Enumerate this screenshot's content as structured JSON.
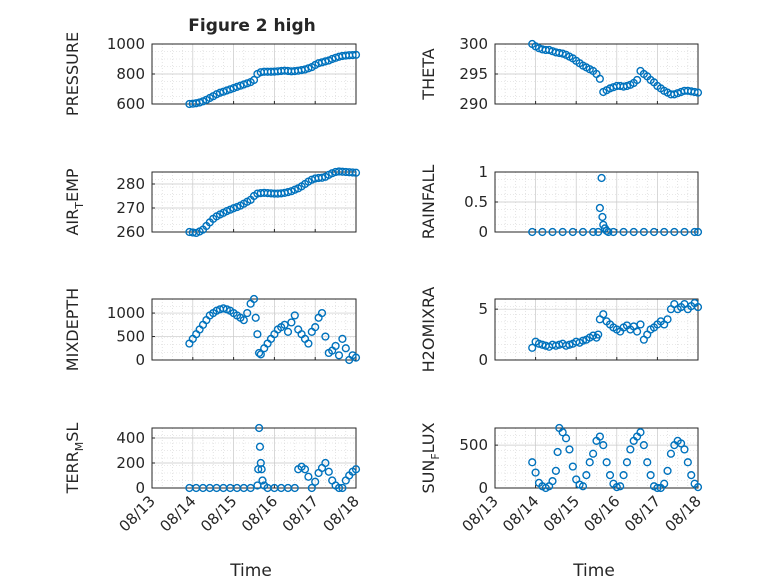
{
  "figure": {
    "title": "Figure 2 high",
    "marker_color": "#0072BD",
    "time_ticks": [
      "08/13",
      "08/14",
      "08/15",
      "08/16",
      "08/17",
      "08/18"
    ],
    "xlabel": "Time"
  },
  "chart_data": [
    {
      "type": "scatter",
      "ylabel": "PRESSURE",
      "ylim": [
        600,
        1000
      ],
      "yticks": [
        600,
        800,
        1000
      ],
      "grid": true,
      "x": [
        "08/13 22:00",
        "08/14 00:00",
        "08/14 02:00",
        "08/14 04:00",
        "08/14 06:00",
        "08/14 08:00",
        "08/14 10:00",
        "08/14 12:00",
        "08/14 14:00",
        "08/14 16:00",
        "08/14 18:00",
        "08/14 20:00",
        "08/14 22:00",
        "08/15 00:00",
        "08/15 02:00",
        "08/15 04:00",
        "08/15 06:00",
        "08/15 08:00",
        "08/15 10:00",
        "08/15 12:00",
        "08/15 14:00",
        "08/15 16:00",
        "08/15 18:00",
        "08/15 20:00",
        "08/15 22:00",
        "08/16 00:00",
        "08/16 02:00",
        "08/16 04:00",
        "08/16 06:00",
        "08/16 08:00",
        "08/16 10:00",
        "08/16 12:00",
        "08/16 14:00",
        "08/16 16:00",
        "08/16 18:00",
        "08/16 20:00",
        "08/16 22:00",
        "08/17 00:00",
        "08/17 02:00",
        "08/17 04:00",
        "08/17 06:00",
        "08/17 08:00",
        "08/17 10:00",
        "08/17 12:00",
        "08/17 14:00",
        "08/17 16:00",
        "08/17 18:00",
        "08/17 20:00",
        "08/17 22:00",
        "08/18 00:00"
      ],
      "y": [
        600,
        602,
        605,
        610,
        618,
        628,
        640,
        652,
        665,
        675,
        682,
        690,
        698,
        706,
        714,
        722,
        730,
        738,
        746,
        760,
        800,
        812,
        815,
        815,
        815,
        816,
        818,
        820,
        822,
        820,
        818,
        819,
        822,
        826,
        830,
        838,
        846,
        860,
        872,
        878,
        884,
        890,
        900,
        908,
        915,
        920,
        923,
        925,
        926,
        928
      ]
    },
    {
      "type": "scatter",
      "ylabel": "THETA",
      "ylim": [
        290,
        300
      ],
      "yticks": [
        290,
        295,
        300
      ],
      "grid": true,
      "x": [
        "08/13 22:00",
        "08/14 00:00",
        "08/14 02:00",
        "08/14 04:00",
        "08/14 06:00",
        "08/14 08:00",
        "08/14 10:00",
        "08/14 12:00",
        "08/14 14:00",
        "08/14 16:00",
        "08/14 18:00",
        "08/14 20:00",
        "08/14 22:00",
        "08/15 00:00",
        "08/15 02:00",
        "08/15 04:00",
        "08/15 06:00",
        "08/15 08:00",
        "08/15 10:00",
        "08/15 12:00",
        "08/15 14:00",
        "08/15 16:00",
        "08/15 18:00",
        "08/15 20:00",
        "08/15 22:00",
        "08/16 00:00",
        "08/16 02:00",
        "08/16 04:00",
        "08/16 06:00",
        "08/16 08:00",
        "08/16 10:00",
        "08/16 12:00",
        "08/16 14:00",
        "08/16 16:00",
        "08/16 18:00",
        "08/16 20:00",
        "08/16 22:00",
        "08/17 00:00",
        "08/17 02:00",
        "08/17 04:00",
        "08/17 06:00",
        "08/17 08:00",
        "08/17 10:00",
        "08/17 12:00",
        "08/17 14:00",
        "08/17 16:00",
        "08/17 18:00",
        "08/17 20:00",
        "08/17 22:00",
        "08/18 00:00"
      ],
      "y": [
        300,
        299.6,
        299.3,
        299.1,
        299,
        299,
        298.8,
        298.6,
        298.5,
        298.4,
        298.2,
        297.9,
        297.6,
        297.2,
        296.8,
        296.4,
        296.1,
        295.8,
        295.5,
        295,
        294.2,
        292,
        292.3,
        292.6,
        292.8,
        293,
        293,
        292.9,
        293,
        293.2,
        293.5,
        294,
        295.5,
        295,
        294.6,
        294,
        293.6,
        293,
        292.6,
        292.2,
        291.9,
        291.6,
        291.6,
        291.8,
        292,
        292.2,
        292.2,
        292.1,
        292,
        291.9
      ]
    },
    {
      "type": "scatter",
      "ylabel": "AIR_TEMP",
      "ylim": [
        260,
        285
      ],
      "yticks": [
        260,
        270,
        280
      ],
      "grid": true,
      "x": [
        "08/13 22:00",
        "08/14 00:00",
        "08/14 02:00",
        "08/14 04:00",
        "08/14 06:00",
        "08/14 08:00",
        "08/14 10:00",
        "08/14 12:00",
        "08/14 14:00",
        "08/14 16:00",
        "08/14 18:00",
        "08/14 20:00",
        "08/14 22:00",
        "08/15 00:00",
        "08/15 02:00",
        "08/15 04:00",
        "08/15 06:00",
        "08/15 08:00",
        "08/15 10:00",
        "08/15 12:00",
        "08/15 14:00",
        "08/15 16:00",
        "08/15 18:00",
        "08/15 20:00",
        "08/15 22:00",
        "08/16 00:00",
        "08/16 02:00",
        "08/16 04:00",
        "08/16 06:00",
        "08/16 08:00",
        "08/16 10:00",
        "08/16 12:00",
        "08/16 14:00",
        "08/16 16:00",
        "08/16 18:00",
        "08/16 20:00",
        "08/16 22:00",
        "08/17 00:00",
        "08/17 02:00",
        "08/17 04:00",
        "08/17 06:00",
        "08/17 08:00",
        "08/17 10:00",
        "08/17 12:00",
        "08/17 14:00",
        "08/17 16:00",
        "08/17 18:00",
        "08/17 20:00",
        "08/17 22:00",
        "08/18 00:00"
      ],
      "y": [
        260,
        259.8,
        259.6,
        260.2,
        261,
        262.5,
        264,
        265.5,
        266.5,
        267.3,
        268,
        268.7,
        269.3,
        269.9,
        270.4,
        271,
        271.8,
        272.6,
        273.4,
        275,
        276,
        276.2,
        276.3,
        276.2,
        276.1,
        276,
        276,
        276.1,
        276.3,
        276.6,
        277,
        277.6,
        278.2,
        279,
        280,
        281,
        281.8,
        282.3,
        282.5,
        282.6,
        283,
        283.8,
        284.5,
        285,
        285.2,
        285.1,
        285,
        284.9,
        284.8,
        284.7
      ]
    },
    {
      "type": "scatter",
      "ylabel": "RAINFALL",
      "ylim": [
        0,
        1
      ],
      "yticks": [
        0,
        0.5,
        1
      ],
      "grid": true,
      "x": [
        "08/13 22:00",
        "08/14 04:00",
        "08/14 10:00",
        "08/14 16:00",
        "08/14 22:00",
        "08/15 04:00",
        "08/15 10:00",
        "08/15 13:00",
        "08/15 14:00",
        "08/15 15:00",
        "08/15 15:30",
        "08/15 16:00",
        "08/15 17:00",
        "08/15 18:00",
        "08/15 19:00",
        "08/15 22:00",
        "08/16 04:00",
        "08/16 10:00",
        "08/16 16:00",
        "08/16 22:00",
        "08/17 04:00",
        "08/17 10:00",
        "08/17 16:00",
        "08/17 22:00",
        "08/18 00:00"
      ],
      "y": [
        0,
        0,
        0,
        0,
        0,
        0,
        0,
        0,
        0.4,
        0.9,
        0.25,
        0.12,
        0.06,
        0.02,
        0,
        0,
        0,
        0,
        0,
        0,
        0,
        0,
        0,
        0,
        0
      ]
    },
    {
      "type": "scatter",
      "ylabel": "MIXDEPTH",
      "ylim": [
        0,
        1300
      ],
      "yticks": [
        0,
        500,
        1000
      ],
      "grid": true,
      "x": [
        "08/13 22:00",
        "08/14 00:00",
        "08/14 02:00",
        "08/14 04:00",
        "08/14 06:00",
        "08/14 08:00",
        "08/14 10:00",
        "08/14 12:00",
        "08/14 14:00",
        "08/14 16:00",
        "08/14 18:00",
        "08/14 20:00",
        "08/14 22:00",
        "08/15 00:00",
        "08/15 02:00",
        "08/15 04:00",
        "08/15 06:00",
        "08/15 08:00",
        "08/15 10:00",
        "08/15 12:00",
        "08/15 13:00",
        "08/15 14:00",
        "08/15 15:00",
        "08/15 16:00",
        "08/15 18:00",
        "08/15 20:00",
        "08/15 22:00",
        "08/16 00:00",
        "08/16 02:00",
        "08/16 04:00",
        "08/16 06:00",
        "08/16 08:00",
        "08/16 10:00",
        "08/16 12:00",
        "08/16 14:00",
        "08/16 16:00",
        "08/16 18:00",
        "08/16 20:00",
        "08/16 22:00",
        "08/17 00:00",
        "08/17 02:00",
        "08/17 04:00",
        "08/17 06:00",
        "08/17 08:00",
        "08/17 10:00",
        "08/17 12:00",
        "08/17 14:00",
        "08/17 16:00",
        "08/17 18:00",
        "08/17 20:00",
        "08/17 22:00",
        "08/18 00:00"
      ],
      "y": [
        350,
        450,
        550,
        650,
        750,
        850,
        950,
        1000,
        1050,
        1080,
        1100,
        1080,
        1050,
        1000,
        950,
        900,
        850,
        1000,
        1200,
        1300,
        900,
        550,
        150,
        120,
        250,
        350,
        450,
        550,
        650,
        700,
        750,
        600,
        800,
        950,
        650,
        550,
        450,
        350,
        600,
        700,
        900,
        1000,
        500,
        150,
        200,
        300,
        100,
        450,
        250,
        0,
        100,
        50
      ]
    },
    {
      "type": "scatter",
      "ylabel": "H2OMIXRA",
      "ylim": [
        0,
        6
      ],
      "yticks": [
        0,
        5
      ],
      "grid": true,
      "x": [
        "08/13 22:00",
        "08/14 00:00",
        "08/14 02:00",
        "08/14 04:00",
        "08/14 06:00",
        "08/14 08:00",
        "08/14 10:00",
        "08/14 12:00",
        "08/14 14:00",
        "08/14 16:00",
        "08/14 18:00",
        "08/14 20:00",
        "08/14 22:00",
        "08/15 00:00",
        "08/15 02:00",
        "08/15 04:00",
        "08/15 06:00",
        "08/15 08:00",
        "08/15 10:00",
        "08/15 12:00",
        "08/15 13:00",
        "08/15 14:00",
        "08/15 16:00",
        "08/15 18:00",
        "08/15 20:00",
        "08/15 22:00",
        "08/16 00:00",
        "08/16 02:00",
        "08/16 04:00",
        "08/16 06:00",
        "08/16 08:00",
        "08/16 10:00",
        "08/16 12:00",
        "08/16 14:00",
        "08/16 16:00",
        "08/16 18:00",
        "08/16 20:00",
        "08/16 22:00",
        "08/17 00:00",
        "08/17 02:00",
        "08/17 04:00",
        "08/17 06:00",
        "08/17 08:00",
        "08/17 10:00",
        "08/17 12:00",
        "08/17 14:00",
        "08/17 16:00",
        "08/17 18:00",
        "08/17 20:00",
        "08/17 22:00",
        "08/18 00:00"
      ],
      "y": [
        1.2,
        1.8,
        1.6,
        1.5,
        1.4,
        1.3,
        1.5,
        1.4,
        1.5,
        1.6,
        1.4,
        1.5,
        1.6,
        1.8,
        1.7,
        1.9,
        2.0,
        2.2,
        2.4,
        2.2,
        2.5,
        4.0,
        4.5,
        3.8,
        3.5,
        3.2,
        3.0,
        2.8,
        3.2,
        3.4,
        3.0,
        3.3,
        2.8,
        3.5,
        2.0,
        2.5,
        3.0,
        3.2,
        3.5,
        3.8,
        3.5,
        4.0,
        5.0,
        5.5,
        5.0,
        5.2,
        5.5,
        5.0,
        5.3,
        5.6,
        5.2
      ]
    },
    {
      "type": "scatter",
      "ylabel": "TERR_MSL",
      "ylim": [
        0,
        480
      ],
      "yticks": [
        0,
        200,
        400
      ],
      "grid": true,
      "x": [
        "08/13 22:00",
        "08/14 02:00",
        "08/14 06:00",
        "08/14 10:00",
        "08/14 14:00",
        "08/14 18:00",
        "08/14 22:00",
        "08/15 02:00",
        "08/15 06:00",
        "08/15 10:00",
        "08/15 14:00",
        "08/15 14:30",
        "08/15 15:00",
        "08/15 15:30",
        "08/15 16:00",
        "08/15 16:30",
        "08/15 17:00",
        "08/15 18:00",
        "08/15 20:00",
        "08/16 00:00",
        "08/16 04:00",
        "08/16 08:00",
        "08/16 12:00",
        "08/16 14:00",
        "08/16 16:00",
        "08/16 18:00",
        "08/16 20:00",
        "08/16 22:00",
        "08/17 00:00",
        "08/17 02:00",
        "08/17 04:00",
        "08/17 06:00",
        "08/17 08:00",
        "08/17 10:00",
        "08/17 12:00",
        "08/17 14:00",
        "08/17 16:00",
        "08/17 18:00",
        "08/17 20:00",
        "08/17 22:00",
        "08/18 00:00"
      ],
      "y": [
        0,
        0,
        0,
        0,
        0,
        0,
        0,
        0,
        0,
        0,
        20,
        150,
        480,
        330,
        200,
        150,
        60,
        20,
        0,
        0,
        0,
        0,
        0,
        150,
        170,
        150,
        90,
        0,
        50,
        120,
        160,
        200,
        130,
        60,
        20,
        0,
        0,
        60,
        100,
        130,
        150
      ]
    },
    {
      "type": "scatter",
      "ylabel": "SUN_FLUX",
      "ylim": [
        0,
        700
      ],
      "yticks": [
        0,
        500
      ],
      "grid": true,
      "x": [
        "08/13 22:00",
        "08/14 00:00",
        "08/14 02:00",
        "08/14 04:00",
        "08/14 06:00",
        "08/14 08:00",
        "08/14 10:00",
        "08/14 12:00",
        "08/14 13:00",
        "08/14 14:00",
        "08/14 16:00",
        "08/14 18:00",
        "08/14 20:00",
        "08/14 22:00",
        "08/15 00:00",
        "08/15 02:00",
        "08/15 04:00",
        "08/15 06:00",
        "08/15 08:00",
        "08/15 10:00",
        "08/15 12:00",
        "08/15 14:00",
        "08/15 16:00",
        "08/15 18:00",
        "08/15 20:00",
        "08/15 22:00",
        "08/16 00:00",
        "08/16 02:00",
        "08/16 04:00",
        "08/16 06:00",
        "08/16 08:00",
        "08/16 10:00",
        "08/16 12:00",
        "08/16 14:00",
        "08/16 16:00",
        "08/16 18:00",
        "08/16 20:00",
        "08/16 22:00",
        "08/17 00:00",
        "08/17 02:00",
        "08/17 04:00",
        "08/17 06:00",
        "08/17 08:00",
        "08/17 10:00",
        "08/17 12:00",
        "08/17 14:00",
        "08/17 16:00",
        "08/17 18:00",
        "08/17 20:00",
        "08/17 22:00",
        "08/18 00:00"
      ],
      "y": [
        300,
        180,
        60,
        20,
        0,
        20,
        80,
        200,
        420,
        700,
        650,
        580,
        450,
        250,
        100,
        40,
        20,
        150,
        300,
        400,
        550,
        600,
        500,
        300,
        150,
        50,
        10,
        20,
        150,
        300,
        450,
        550,
        600,
        650,
        500,
        300,
        150,
        20,
        0,
        0,
        50,
        200,
        400,
        500,
        550,
        520,
        450,
        300,
        150,
        50,
        10
      ]
    }
  ]
}
